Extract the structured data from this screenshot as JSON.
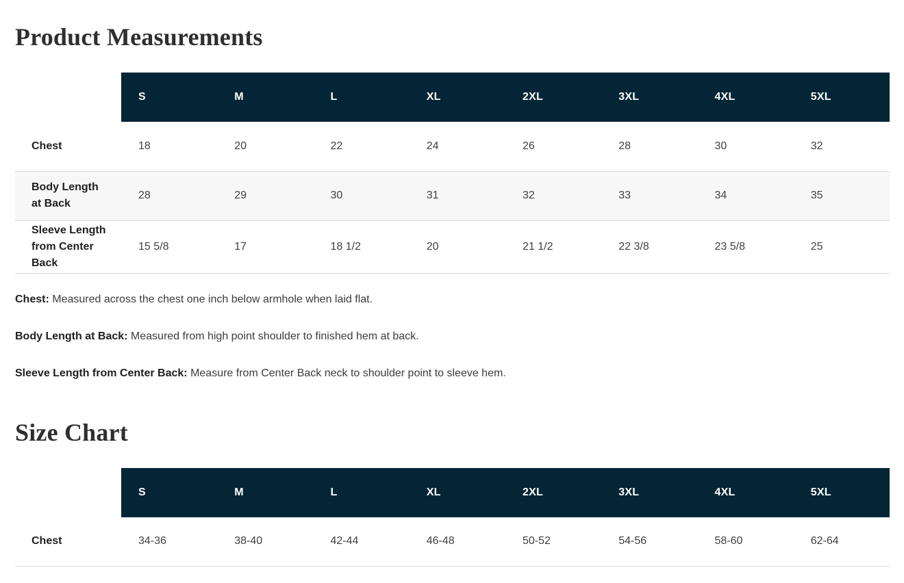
{
  "headings": {
    "product_measurements": "Product Measurements",
    "size_chart": "Size Chart"
  },
  "measurements_table": {
    "sizes": [
      "S",
      "M",
      "L",
      "XL",
      "2XL",
      "3XL",
      "4XL",
      "5XL"
    ],
    "rows": [
      {
        "label": "Chest",
        "values": [
          "18",
          "20",
          "22",
          "24",
          "26",
          "28",
          "30",
          "32"
        ]
      },
      {
        "label": "Body Length at Back",
        "values": [
          "28",
          "29",
          "30",
          "31",
          "32",
          "33",
          "34",
          "35"
        ]
      },
      {
        "label": "Sleeve Length from Center Back",
        "values": [
          "15 5/8",
          "17",
          "18 1/2",
          "20",
          "21 1/2",
          "22 3/8",
          "23 5/8",
          "25"
        ]
      }
    ]
  },
  "definitions": [
    {
      "term": "Chest:",
      "description": "Measured across the chest one inch below armhole when laid flat."
    },
    {
      "term": "Body Length at Back:",
      "description": "Measured from high point shoulder to finished hem at back."
    },
    {
      "term": "Sleeve Length from Center Back:",
      "description": "Measure from Center Back neck to shoulder point to sleeve hem."
    }
  ],
  "size_chart_table": {
    "sizes": [
      "S",
      "M",
      "L",
      "XL",
      "2XL",
      "3XL",
      "4XL",
      "5XL"
    ],
    "rows": [
      {
        "label": "Chest",
        "values": [
          "34-36",
          "38-40",
          "42-44",
          "46-48",
          "50-52",
          "54-56",
          "58-60",
          "62-64"
        ]
      }
    ]
  },
  "colors": {
    "table_header_bg": "#042536",
    "table_header_text": "#ffffff",
    "zebra_row_bg": "#f7f7f7",
    "row_border": "#d9d9d9",
    "heading_text": "#2f2f2f"
  }
}
